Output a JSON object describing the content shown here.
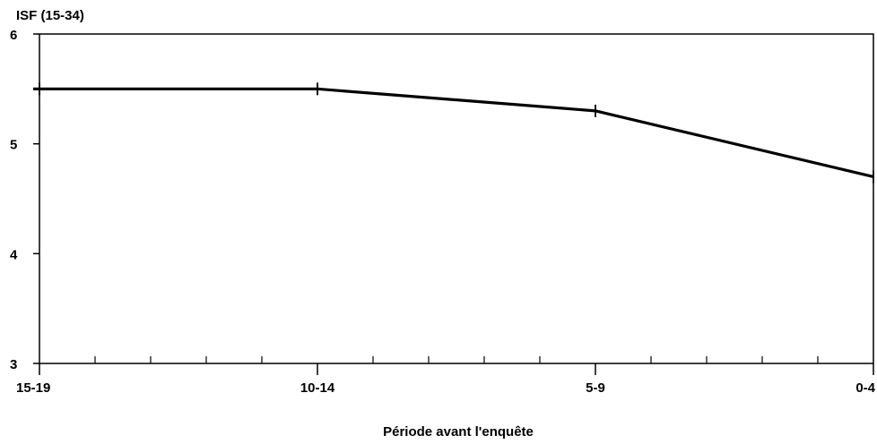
{
  "chart_data": {
    "type": "line",
    "ylabel": "ISF (15-34)",
    "xlabel": "Période avant l'enquête",
    "categories": [
      "15-19",
      "10-14",
      "5-9",
      "0-4"
    ],
    "series": [
      {
        "values": [
          5.5,
          5.5,
          5.3,
          4.7
        ]
      }
    ],
    "ylim": [
      3,
      6
    ],
    "yticks": [
      "3",
      "4",
      "5",
      "6"
    ],
    "grid": false,
    "colors": {
      "line": "#000000",
      "axis": "#000000"
    }
  }
}
